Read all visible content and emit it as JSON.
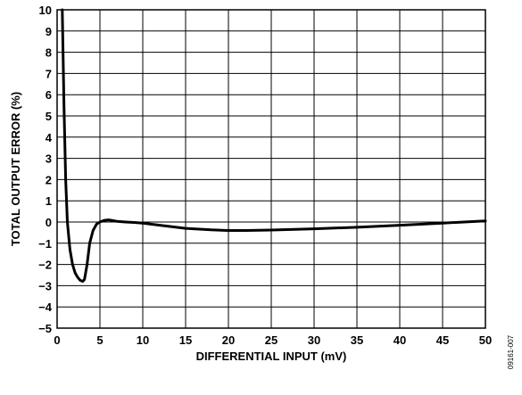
{
  "chart_data": {
    "type": "line",
    "title": "",
    "xlabel": "DIFFERENTIAL INPUT (mV)",
    "ylabel": "TOTAL OUTPUT ERROR (%)",
    "xlim": [
      0,
      50
    ],
    "ylim": [
      -5,
      10
    ],
    "grid": true,
    "x_ticks": [
      0,
      5,
      10,
      15,
      20,
      25,
      30,
      35,
      40,
      45,
      50
    ],
    "y_ticks": [
      10,
      9,
      8,
      7,
      6,
      5,
      4,
      3,
      2,
      1,
      0,
      -1,
      -2,
      -3,
      -4,
      -5
    ],
    "x_tick_labels": [
      "0",
      "5",
      "10",
      "15",
      "20",
      "25",
      "30",
      "35",
      "40",
      "45",
      "50"
    ],
    "y_tick_labels": [
      "10",
      "9",
      "8",
      "7",
      "6",
      "5",
      "4",
      "3",
      "2",
      "1",
      "0",
      "−1",
      "−2",
      "−3",
      "−4",
      "−5"
    ],
    "series": [
      {
        "x": [
          0.6,
          0.8,
          1.0,
          1.2,
          1.5,
          1.8,
          2.1,
          2.4,
          2.7,
          3.0,
          3.2,
          3.5,
          3.8,
          4.2,
          4.6,
          5.0,
          5.5,
          6.0,
          6.5,
          7.0,
          8.0,
          9.0,
          10.0,
          12.0,
          15.0,
          18.0,
          20.0,
          22.0,
          25.0,
          30.0,
          35.0,
          40.0,
          45.0,
          50.0
        ],
        "y": [
          10.0,
          5.5,
          2.0,
          0.0,
          -1.3,
          -2.0,
          -2.4,
          -2.6,
          -2.75,
          -2.8,
          -2.7,
          -2.0,
          -1.0,
          -0.4,
          -0.1,
          0.0,
          0.08,
          0.1,
          0.07,
          0.03,
          0.0,
          -0.02,
          -0.05,
          -0.15,
          -0.3,
          -0.37,
          -0.4,
          -0.4,
          -0.38,
          -0.32,
          -0.25,
          -0.15,
          -0.05,
          0.05
        ]
      }
    ]
  },
  "figure_id": "09161-007"
}
